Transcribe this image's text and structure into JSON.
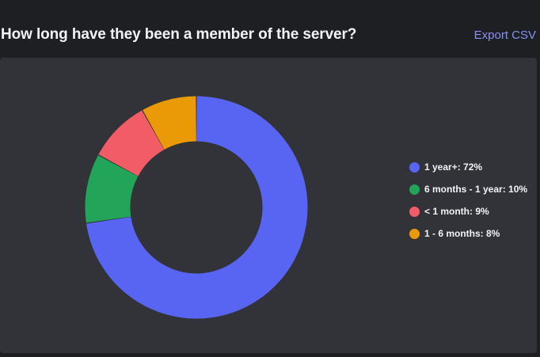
{
  "header": {
    "title": "How long have they been a member of the server?",
    "export_label": "Export CSV"
  },
  "chart_data": {
    "type": "pie",
    "donut": true,
    "legend_position": "right",
    "slices": [
      {
        "label": "1 year+",
        "value": 72,
        "color": "#5865f2",
        "legend_text": "1 year+: 72%"
      },
      {
        "label": "6 months - 1 year",
        "value": 10,
        "color": "#23a559",
        "legend_text": "6 months - 1 year: 10%"
      },
      {
        "label": "< 1 month",
        "value": 9,
        "color": "#f25c66",
        "legend_text": "< 1 month: 9%"
      },
      {
        "label": "1 - 6 months",
        "value": 8,
        "color": "#eb9a07",
        "legend_text": "1 - 6 months: 8%"
      }
    ]
  }
}
